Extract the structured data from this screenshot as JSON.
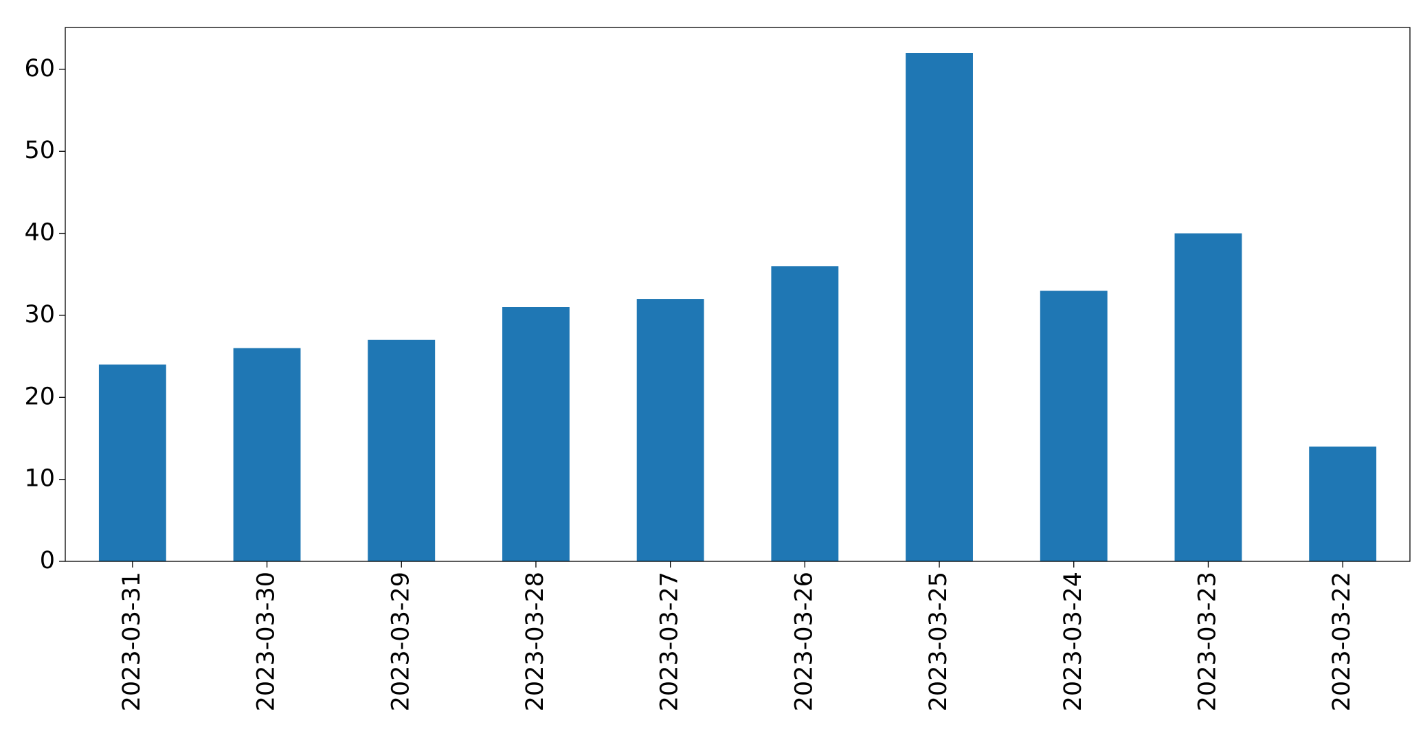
{
  "chart_data": {
    "type": "bar",
    "categories": [
      "2023-03-31",
      "2023-03-30",
      "2023-03-29",
      "2023-03-28",
      "2023-03-27",
      "2023-03-26",
      "2023-03-25",
      "2023-03-24",
      "2023-03-23",
      "2023-03-22"
    ],
    "values": [
      24,
      26,
      27,
      31,
      32,
      36,
      62,
      33,
      40,
      14
    ],
    "color": "#1f77b4",
    "ylim": [
      0,
      65.1
    ],
    "yticks": [
      0,
      10,
      20,
      30,
      40,
      50,
      60
    ],
    "grid": false
  }
}
